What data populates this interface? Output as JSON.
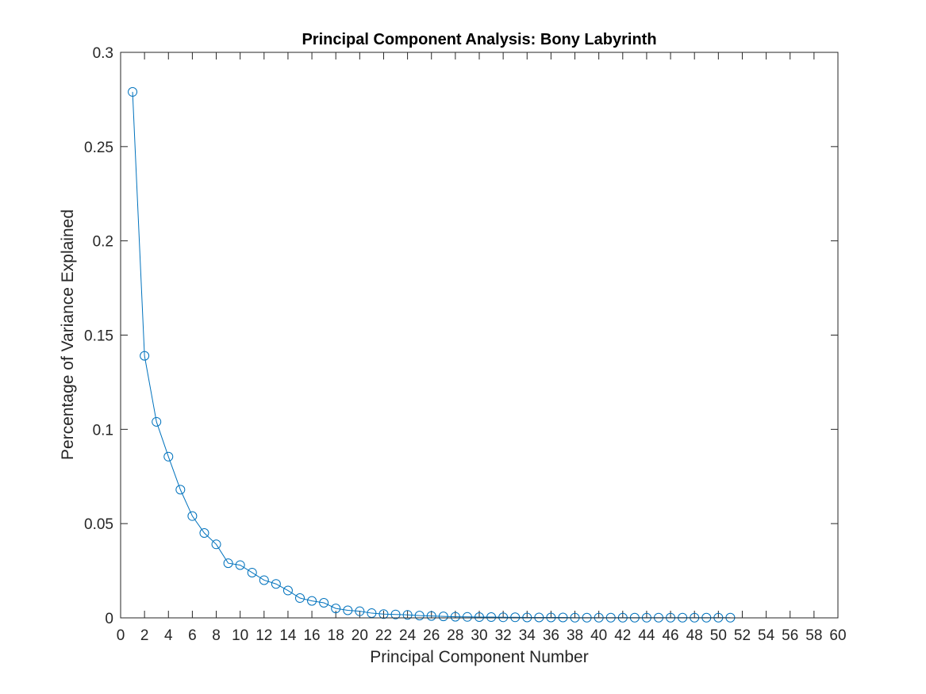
{
  "chart_data": {
    "type": "line",
    "title": "Principal Component Analysis: Bony Labyrinth",
    "xlabel": "Principal Component Number",
    "ylabel": "Percentage of Variance Explained",
    "xlim": [
      0,
      60
    ],
    "ylim": [
      0,
      0.3
    ],
    "xticks": [
      0,
      2,
      4,
      6,
      8,
      10,
      12,
      14,
      16,
      18,
      20,
      22,
      24,
      26,
      28,
      30,
      32,
      34,
      36,
      38,
      40,
      42,
      44,
      46,
      48,
      50,
      52,
      54,
      56,
      58,
      60
    ],
    "yticks": [
      0,
      0.05,
      0.1,
      0.15,
      0.2,
      0.25,
      0.3
    ],
    "ytick_labels": [
      "0",
      "0.05",
      "0.1",
      "0.15",
      "0.2",
      "0.25",
      "0.3"
    ],
    "grid": false,
    "marker": "circle",
    "color": "#0072BD",
    "series": [
      {
        "x": [
          1,
          2,
          3,
          4,
          5,
          6,
          7,
          8,
          9,
          10,
          11,
          12,
          13,
          14,
          15,
          16,
          17,
          18,
          19,
          20,
          21,
          22,
          23,
          24,
          25,
          26,
          27,
          28,
          29,
          30,
          31,
          32,
          33,
          34,
          35,
          36,
          37,
          38,
          39,
          40,
          41,
          42,
          43,
          44,
          45,
          46,
          47,
          48,
          49,
          50,
          51
        ],
        "values": [
          0.279,
          0.139,
          0.104,
          0.0855,
          0.068,
          0.054,
          0.045,
          0.039,
          0.029,
          0.028,
          0.024,
          0.02,
          0.018,
          0.0145,
          0.0105,
          0.009,
          0.008,
          0.005,
          0.004,
          0.0035,
          0.0025,
          0.002,
          0.0018,
          0.0016,
          0.0012,
          0.001,
          0.0008,
          0.0006,
          0.0005,
          0.0004,
          0.0004,
          0.0003,
          0.0003,
          0.0002,
          0.0002,
          0.0002,
          0.0002,
          0.0001,
          0.0001,
          0.0001,
          0.0001,
          0.0001,
          0.0001,
          0.0001,
          0.0001,
          0.0001,
          0.0001,
          0.0001,
          0.0001,
          0.0001,
          0.0001
        ]
      }
    ]
  }
}
